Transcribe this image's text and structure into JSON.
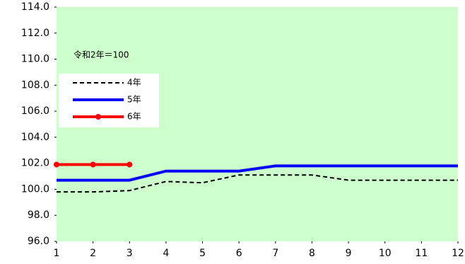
{
  "chart_data": {
    "type": "line",
    "annotation": "令和2年＝100",
    "x": [
      1,
      2,
      3,
      4,
      5,
      6,
      7,
      8,
      9,
      10,
      11,
      12
    ],
    "xlim": [
      1,
      12
    ],
    "xticks": [
      1,
      2,
      3,
      4,
      5,
      6,
      7,
      8,
      9,
      10,
      11,
      12
    ],
    "ylim": [
      96,
      114
    ],
    "yticks": [
      {
        "value": 96,
        "label": "96.0"
      },
      {
        "value": 98,
        "label": "98.0"
      },
      {
        "value": 100,
        "label": "100.0"
      },
      {
        "value": 102,
        "label": "102.0"
      },
      {
        "value": 104,
        "label": "104.0"
      },
      {
        "value": 106,
        "label": "106.0"
      },
      {
        "value": 108,
        "label": "108.0"
      },
      {
        "value": 110,
        "label": "110.0"
      },
      {
        "value": 112,
        "label": "112.0"
      },
      {
        "value": 114,
        "label": "114.0"
      }
    ],
    "background": "#ccffcc",
    "series": [
      {
        "name": "4年",
        "color": "#000000",
        "dashed": true,
        "values": [
          99.8,
          99.8,
          99.9,
          100.6,
          100.5,
          101.1,
          101.1,
          101.1,
          100.7,
          100.7,
          100.7,
          100.7
        ]
      },
      {
        "name": "5年",
        "color": "#0000ff",
        "values": [
          100.7,
          100.7,
          100.7,
          101.4,
          101.4,
          101.4,
          101.8,
          101.8,
          101.8,
          101.8,
          101.8,
          101.8
        ]
      },
      {
        "name": "6年",
        "color": "#ff0000",
        "markers": true,
        "values": [
          101.9,
          101.9,
          101.9,
          null,
          null,
          null,
          null,
          null,
          null,
          null,
          null,
          null
        ]
      }
    ]
  }
}
